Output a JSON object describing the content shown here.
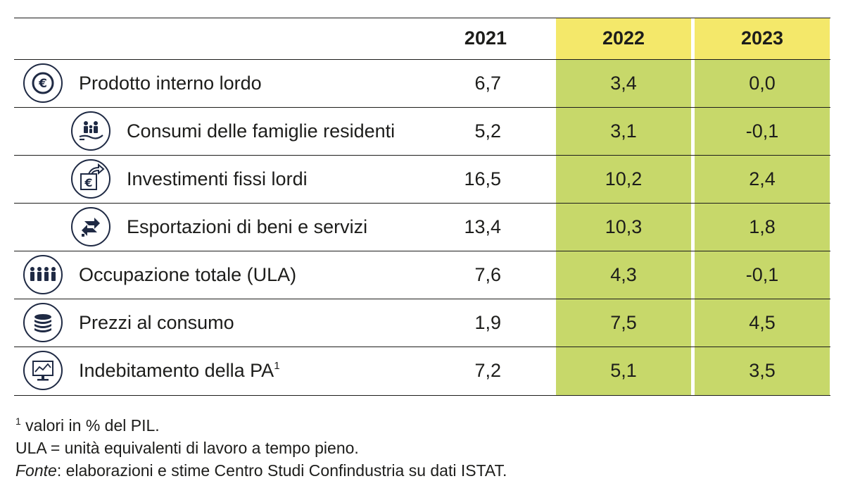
{
  "header": {
    "col_2021": "2021",
    "col_2022": "2022",
    "col_2023": "2023"
  },
  "rows": [
    {
      "label": "Prodotto interno lordo",
      "sup": "",
      "icon": "euro-coin-icon",
      "v2021": "6,7",
      "v2022": "3,4",
      "v2023": "0,0"
    },
    {
      "label": "Consumi delle famiglie residenti",
      "sup": "",
      "icon": "family-hand-icon",
      "v2021": "5,2",
      "v2022": "3,1",
      "v2023": "-0,1"
    },
    {
      "label": "Investimenti fissi lordi",
      "sup": "",
      "icon": "euro-investment-icon",
      "v2021": "16,5",
      "v2022": "10,2",
      "v2023": "2,4"
    },
    {
      "label": "Esportazioni di beni e servizi",
      "sup": "",
      "icon": "export-arrows-icon",
      "v2021": "13,4",
      "v2022": "10,3",
      "v2023": "1,8"
    },
    {
      "label": "Occupazione totale (ULA)",
      "sup": "",
      "icon": "workers-group-icon",
      "v2021": "7,6",
      "v2022": "4,3",
      "v2023": "-0,1"
    },
    {
      "label": "Prezzi al consumo",
      "sup": "",
      "icon": "coin-stack-icon",
      "v2021": "1,9",
      "v2022": "7,5",
      "v2023": "4,5"
    },
    {
      "label": "Indebitamento della PA",
      "sup": "1",
      "icon": "monitor-chart-icon",
      "v2021": "7,2",
      "v2022": "5,1",
      "v2023": "3,5"
    }
  ],
  "notes": {
    "note1_mark": "1",
    "note1_text": " valori in % del PIL.",
    "note2": "ULA = unità equivalenti di lavoro a tempo pieno.",
    "note3_italic": "Fonte",
    "note3_rest": ": elaborazioni e stime Centro Studi Confindustria su dati ISTAT."
  },
  "colors": {
    "header_highlight": "#f4e86a",
    "body_highlight": "#c7d86a",
    "text": "#1d1d1b",
    "icon_navy": "#1f2a44"
  }
}
